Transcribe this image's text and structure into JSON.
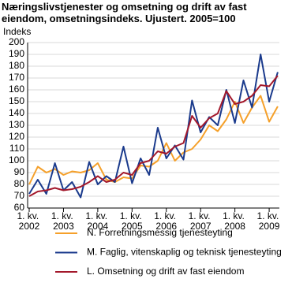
{
  "chart_data": {
    "type": "line",
    "title": "Næringslivstjenester og omsetning og drift av fast eiendom, omsetningsindeks. Ujustert. 2005=100",
    "y_label": "Indeks",
    "categories": [
      "1. kv. 2002",
      null,
      null,
      null,
      "1. kv. 2003",
      null,
      null,
      null,
      "1. kv. 2004",
      null,
      null,
      null,
      "1. kv. 2005",
      null,
      null,
      null,
      "1. kv. 2006",
      null,
      null,
      null,
      "1. kv. 2007",
      null,
      null,
      null,
      "1. kv. 2008",
      null,
      null,
      null,
      "1. kv. 2009",
      null
    ],
    "series": [
      {
        "name": "N. Forretningsmessig tjenesteyting",
        "color": "#f5a02a",
        "values": [
          80,
          95,
          90,
          93,
          88,
          91,
          90,
          92,
          98,
          84,
          82,
          86,
          85,
          96,
          95,
          100,
          115,
          100,
          107,
          110,
          118,
          130,
          125,
          135,
          150,
          132,
          145,
          155,
          133,
          146
        ]
      },
      {
        "name": "M. Faglig, vitenskaplig og teknisk tjenesteyting",
        "color": "#1a3a8c",
        "values": [
          72,
          84,
          72,
          98,
          75,
          82,
          69,
          99,
          80,
          87,
          82,
          112,
          81,
          102,
          88,
          128,
          102,
          113,
          101,
          151,
          124,
          137,
          130,
          160,
          132,
          168,
          145,
          190,
          150,
          175
        ]
      },
      {
        "name": "L. Omsetning og drift av fast eiendom",
        "color": "#a3182b",
        "values": [
          70,
          74,
          75,
          77,
          75,
          76,
          78,
          82,
          87,
          82,
          84,
          90,
          88,
          98,
          100,
          108,
          106,
          112,
          115,
          138,
          128,
          136,
          140,
          159,
          148,
          150,
          155,
          164,
          163,
          172
        ]
      }
    ],
    "ylim": [
      60,
      200
    ],
    "yticks": [
      60,
      70,
      80,
      90,
      100,
      110,
      120,
      130,
      140,
      150,
      160,
      170,
      180,
      190,
      200
    ],
    "grid": true
  }
}
